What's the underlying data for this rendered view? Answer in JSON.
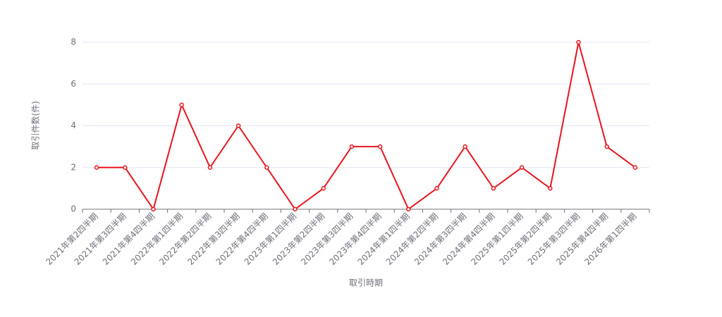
{
  "chart_data": {
    "type": "line",
    "x_label": "取引時期",
    "y_label": "取引件数(件)",
    "categories": [
      "2021年第2四半期",
      "2021年第3四半期",
      "2021年第4四半期",
      "2022年第1四半期",
      "2022年第2四半期",
      "2022年第3四半期",
      "2022年第4四半期",
      "2023年第1四半期",
      "2023年第2四半期",
      "2023年第3四半期",
      "2023年第4四半期",
      "2024年第1四半期",
      "2024年第2四半期",
      "2024年第3四半期",
      "2024年第4四半期",
      "2025年第1四半期",
      "2025年第2四半期",
      "2025年第3四半期",
      "2025年第4四半期",
      "2026年第1四半期"
    ],
    "values": [
      2,
      2,
      0,
      5,
      2,
      4,
      2,
      0,
      1,
      3,
      3,
      0,
      1,
      3,
      1,
      2,
      1,
      8,
      3,
      2
    ],
    "color": "#e8141c",
    "ylim": [
      0,
      8
    ],
    "yticks": [
      0,
      2,
      4,
      6,
      8
    ],
    "grid": true
  }
}
